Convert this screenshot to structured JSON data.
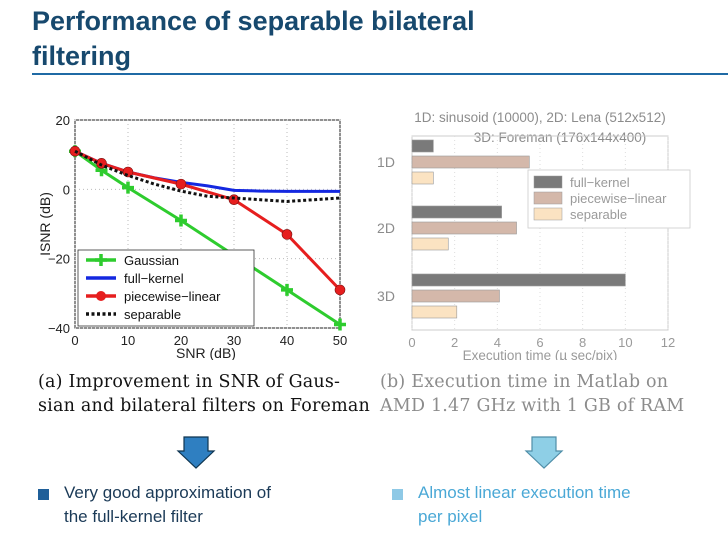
{
  "slide": {
    "title_line1": "Performance of separable bilateral",
    "title_line2": "filtering",
    "title_color": "#17496e"
  },
  "chart_data": [
    {
      "type": "line",
      "ylabel": "ISNR (dB)",
      "xlabel": "SNR (dB)",
      "xlim": [
        0,
        50
      ],
      "ylim": [
        -40,
        20
      ],
      "x_ticks": [
        0,
        10,
        20,
        30,
        40,
        50
      ],
      "y_ticks": [
        20,
        0,
        -20,
        -40
      ],
      "y_tick_labels": [
        "20",
        "0",
        "−20",
        "−40"
      ],
      "legend": [
        "Gaussian",
        "full−kernel",
        "piecewise−linear",
        "separable"
      ],
      "series": [
        {
          "name": "Gaussian",
          "color": "#2ecc2e",
          "marker": "plus",
          "x": [
            0,
            5,
            10,
            20,
            40,
            50
          ],
          "y": [
            11,
            5.5,
            0.5,
            -9,
            -29,
            -39
          ]
        },
        {
          "name": "full−kernel",
          "color": "#1428e0",
          "marker": "none",
          "x": [
            0,
            5,
            10,
            15,
            20,
            25,
            30,
            35,
            40,
            45,
            50
          ],
          "y": [
            11,
            7.5,
            5,
            3.3,
            2,
            1,
            -0.3,
            -0.5,
            -0.6,
            -0.6,
            -0.6
          ]
        },
        {
          "name": "piecewise−linear",
          "color": "#e61e1e",
          "marker": "circle",
          "x": [
            0,
            5,
            10,
            20,
            30,
            40,
            50
          ],
          "y": [
            11,
            7.5,
            5,
            1.5,
            -3,
            -13,
            -29
          ]
        },
        {
          "name": "separable",
          "color": "#111111",
          "marker": "none",
          "dashed": true,
          "x": [
            0,
            5,
            10,
            15,
            20,
            25,
            30,
            35,
            40,
            45,
            50
          ],
          "y": [
            11,
            7,
            4,
            1.5,
            -0.5,
            -2,
            -2.5,
            -3,
            -3.5,
            -3,
            -2.5
          ]
        }
      ]
    },
    {
      "type": "bar",
      "orientation": "horizontal",
      "title_line1": "1D: sinusoid (10000), 2D: Lena (512x512)",
      "title_line2": "3D: Foreman (176x144x400)",
      "xlabel": "Execution time (µ sec/pix)",
      "xlim": [
        0,
        12
      ],
      "x_ticks": [
        0,
        2,
        4,
        6,
        8,
        10,
        12
      ],
      "categories": [
        "1D",
        "2D",
        "3D"
      ],
      "legend": [
        "full−kernel",
        "piecewise−linear",
        "separable"
      ],
      "series": [
        {
          "name": "full−kernel",
          "color": "#7a7a7a",
          "values": [
            1,
            4.2,
            10
          ]
        },
        {
          "name": "piecewise−linear",
          "color": "#d4b8aa",
          "values": [
            5.5,
            4.9,
            4.1
          ]
        },
        {
          "name": "separable",
          "color": "#fbe3c2",
          "values": [
            1,
            1.7,
            2.1
          ]
        }
      ]
    }
  ],
  "captions": {
    "a_line1": "(a) Improvement in SNR of Gaus-",
    "a_line2": "sian and bilateral filters on Foreman",
    "b_line1": "(b) Execution time in Matlab on",
    "b_line2": "AMD 1.47 GHz with 1 GB of RAM"
  },
  "bullets": {
    "left_line1": "Very good approximation of",
    "left_line2": "the full-kernel filter",
    "right_line1": "Almost linear execution time",
    "right_line2": "per pixel"
  },
  "arrows": {
    "left_icon": "down-arrow-icon",
    "right_icon": "down-arrow-icon",
    "left_color": "#2f7fc1",
    "right_color": "#8ecfe6"
  }
}
